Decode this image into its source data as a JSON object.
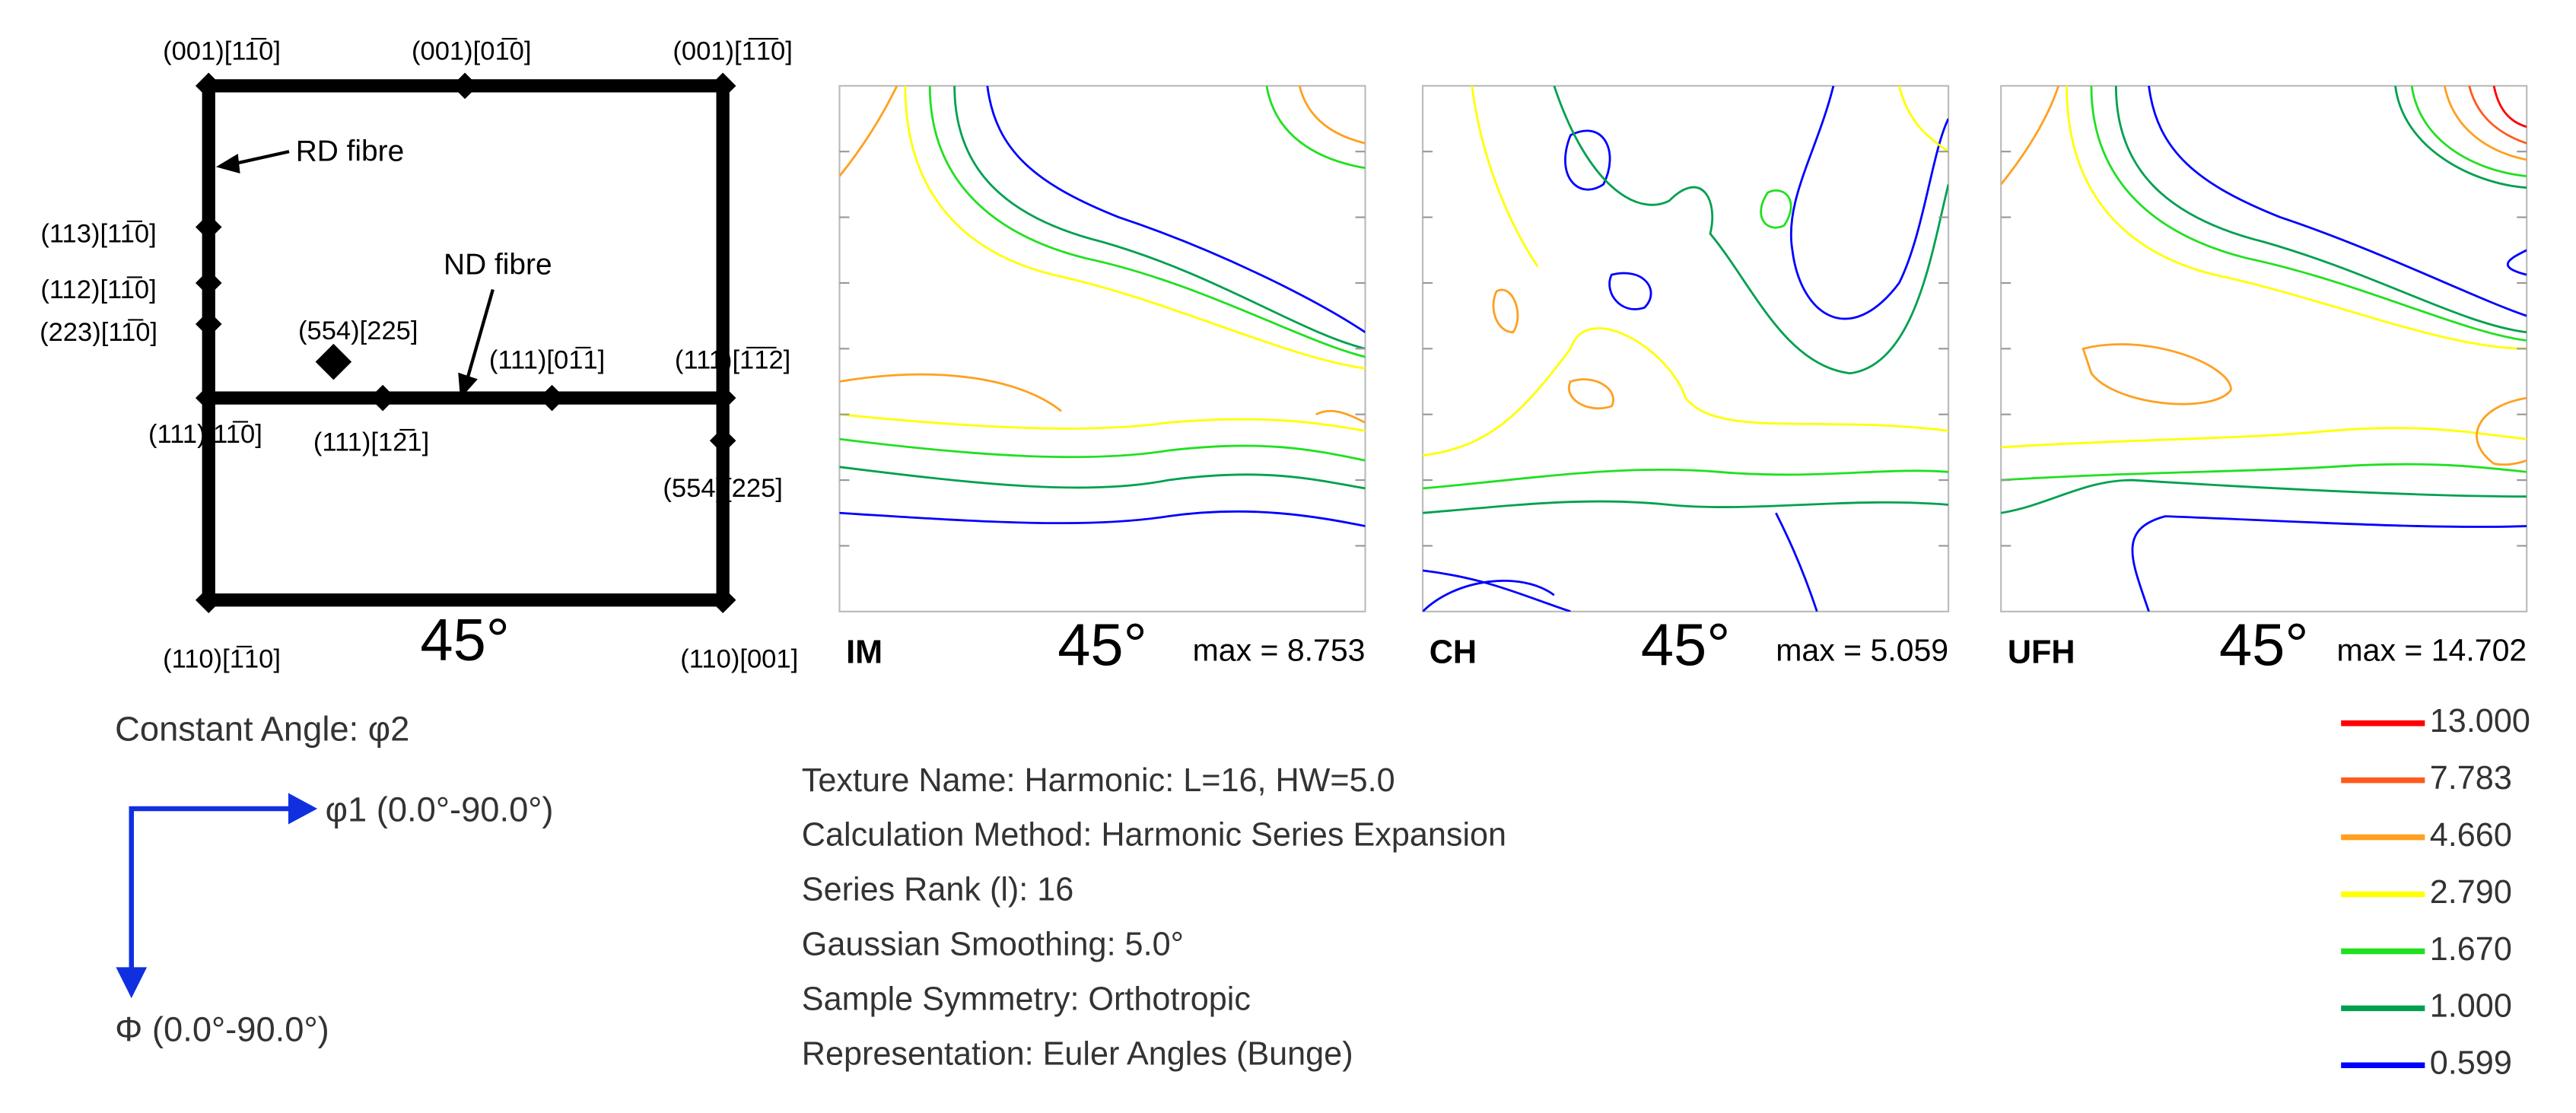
{
  "schematic": {
    "labels": [
      "(001)[11̅0]",
      "(001)[01̅0]",
      "(001)[1̅1̅0]",
      "(113)[11̅0]",
      "(112)[11̅0]",
      "(223)[11̅0]",
      "(554)[225]",
      "(111)[01̅1]",
      "(111)[1̅1̅2]",
      "(111)[11̅0]",
      "(111)[12̅1]",
      "(554)[225]",
      "(110)[1̅10]",
      "(110)[001]"
    ],
    "angle": "45°",
    "rd_fibre": "RD fibre",
    "nd_fibre": "ND fibre"
  },
  "panels": [
    {
      "name": "IM",
      "angle": "45°",
      "max": "max = 8.753"
    },
    {
      "name": "CH",
      "angle": "45°",
      "max": "max = 5.059"
    },
    {
      "name": "UFH",
      "angle": "45°",
      "max": "max = 14.702"
    }
  ],
  "axes": {
    "constant_angle": "Constant Angle: φ2",
    "phi1": "φ1 (0.0°-90.0°)",
    "Phi": "Φ (0.0°-90.0°)"
  },
  "info": [
    "Texture Name: Harmonic: L=16, HW=5.0",
    "Calculation Method: Harmonic Series Expansion",
    "Series Rank (l): 16",
    "Gaussian Smoothing: 5.0°",
    "Sample Symmetry: Orthotropic",
    "Representation: Euler Angles (Bunge)"
  ],
  "legend": [
    {
      "label": "13.000",
      "color": "#ff0000"
    },
    {
      "label": "7.783",
      "color": "#ff5a1e"
    },
    {
      "label": "4.660",
      "color": "#ffa020"
    },
    {
      "label": "2.790",
      "color": "#ffff00"
    },
    {
      "label": "1.670",
      "color": "#20e020"
    },
    {
      "label": "1.000",
      "color": "#00a050"
    },
    {
      "label": "0.599",
      "color": "#0000ff"
    }
  ]
}
